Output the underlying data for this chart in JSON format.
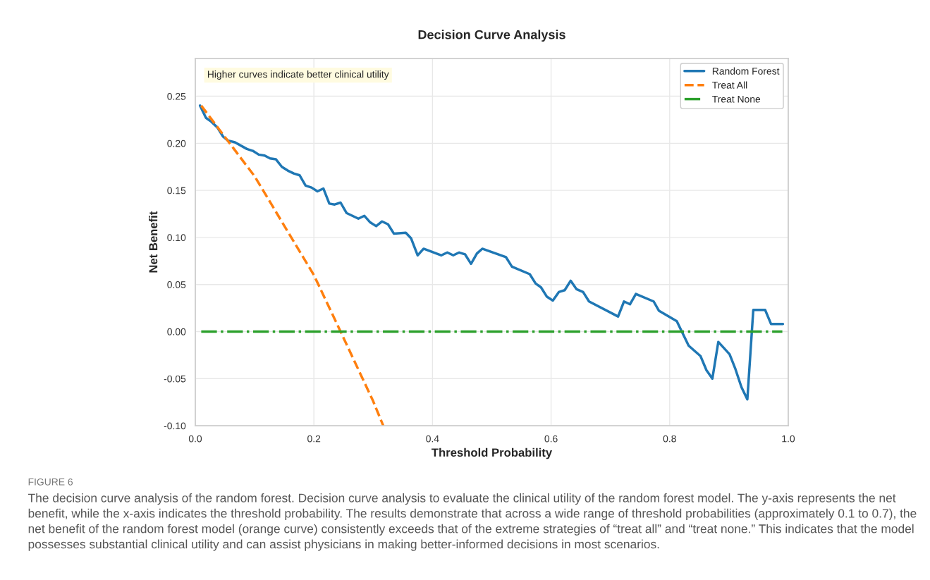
{
  "chart_data": {
    "type": "line",
    "title": "Decision Curve Analysis",
    "xlabel": "Threshold Probability",
    "ylabel": "Net Benefit",
    "xlim": [
      0,
      1
    ],
    "ylim": [
      -0.1,
      0.29
    ],
    "xticks": [
      {
        "value": 0,
        "label": "0.0"
      },
      0.2,
      0.4,
      0.6,
      0.8,
      {
        "value": 1,
        "label": "1.0"
      }
    ],
    "yticks": [
      {
        "value": -0.1,
        "label": "-0.10"
      },
      {
        "value": -0.05,
        "label": "-0.05"
      },
      {
        "value": 0,
        "label": "0.00"
      },
      0.05,
      {
        "value": 0.1,
        "label": "0.10"
      },
      0.15,
      {
        "value": 0.2,
        "label": "0.20"
      },
      0.25
    ],
    "grid": true,
    "legend": "top right",
    "series": [
      {
        "name": "Random Forest",
        "color": "#1f77b4",
        "line_style": "solid",
        "x": [
          0.008,
          0.018,
          0.027,
          0.037,
          0.047,
          0.055,
          0.067,
          0.087,
          0.097,
          0.107,
          0.117,
          0.126,
          0.136,
          0.146,
          0.156,
          0.166,
          0.176,
          0.186,
          0.196,
          0.206,
          0.216,
          0.226,
          0.235,
          0.245,
          0.255,
          0.265,
          0.275,
          0.285,
          0.295,
          0.305,
          0.315,
          0.325,
          0.335,
          0.355,
          0.364,
          0.375,
          0.385,
          0.415,
          0.425,
          0.435,
          0.445,
          0.455,
          0.465,
          0.475,
          0.484,
          0.524,
          0.534,
          0.564,
          0.574,
          0.583,
          0.593,
          0.603,
          0.613,
          0.623,
          0.633,
          0.643,
          0.654,
          0.664,
          0.713,
          0.723,
          0.733,
          0.743,
          0.773,
          0.782,
          0.812,
          0.832,
          0.852,
          0.862,
          0.872,
          0.882,
          0.901,
          0.911,
          0.921,
          0.931,
          0.941,
          0.961,
          0.971,
          0.991
        ],
        "values": [
          0.24,
          0.227,
          0.223,
          0.217,
          0.207,
          0.203,
          0.201,
          0.194,
          0.192,
          0.188,
          0.187,
          0.184,
          0.183,
          0.175,
          0.171,
          0.168,
          0.166,
          0.155,
          0.153,
          0.149,
          0.152,
          0.136,
          0.135,
          0.137,
          0.126,
          0.123,
          0.12,
          0.123,
          0.116,
          0.112,
          0.117,
          0.114,
          0.104,
          0.105,
          0.099,
          0.081,
          0.088,
          0.081,
          0.084,
          0.081,
          0.084,
          0.082,
          0.072,
          0.083,
          0.088,
          0.079,
          0.069,
          0.061,
          0.051,
          0.047,
          0.037,
          0.033,
          0.042,
          0.044,
          0.054,
          0.045,
          0.042,
          0.032,
          0.016,
          0.032,
          0.029,
          0.04,
          0.032,
          0.022,
          0.011,
          -0.015,
          -0.026,
          -0.041,
          -0.05,
          -0.011,
          -0.024,
          -0.04,
          -0.059,
          -0.072,
          0.023,
          0.023,
          0.008,
          0.008
        ]
      },
      {
        "name": "Treat All",
        "color": "#ff7f0e",
        "line_style": "dashed",
        "x": [
          0.01,
          0.1,
          0.2,
          0.245,
          0.3,
          0.317
        ],
        "values": [
          0.24,
          0.165,
          0.06,
          0.0,
          -0.074,
          -0.1
        ]
      },
      {
        "name": "Treat None",
        "color": "#2ca02c",
        "line_style": "dashdot",
        "x": [
          0.01,
          0.99
        ],
        "values": [
          0.0,
          0.0
        ]
      }
    ],
    "annotations": [
      "Higher curves indicate better clinical utility",
      "FIGURE 6",
      "The decision curve analysis of the random forest. Decision curve analysis to evaluate the clinical utility of the random forest model. The y-axis represents the net benefit, while the x-axis indicates the threshold probability. The results demonstrate that across a wide range of threshold probabilities (approximately 0.1 to 0.7), the net benefit of the random forest model (orange curve) consistently exceeds that of the extreme strategies of “treat all” and “treat none.” This indicates that the model possesses substantial clinical utility and can assist physicians in making better-informed decisions in most scenarios."
    ]
  }
}
